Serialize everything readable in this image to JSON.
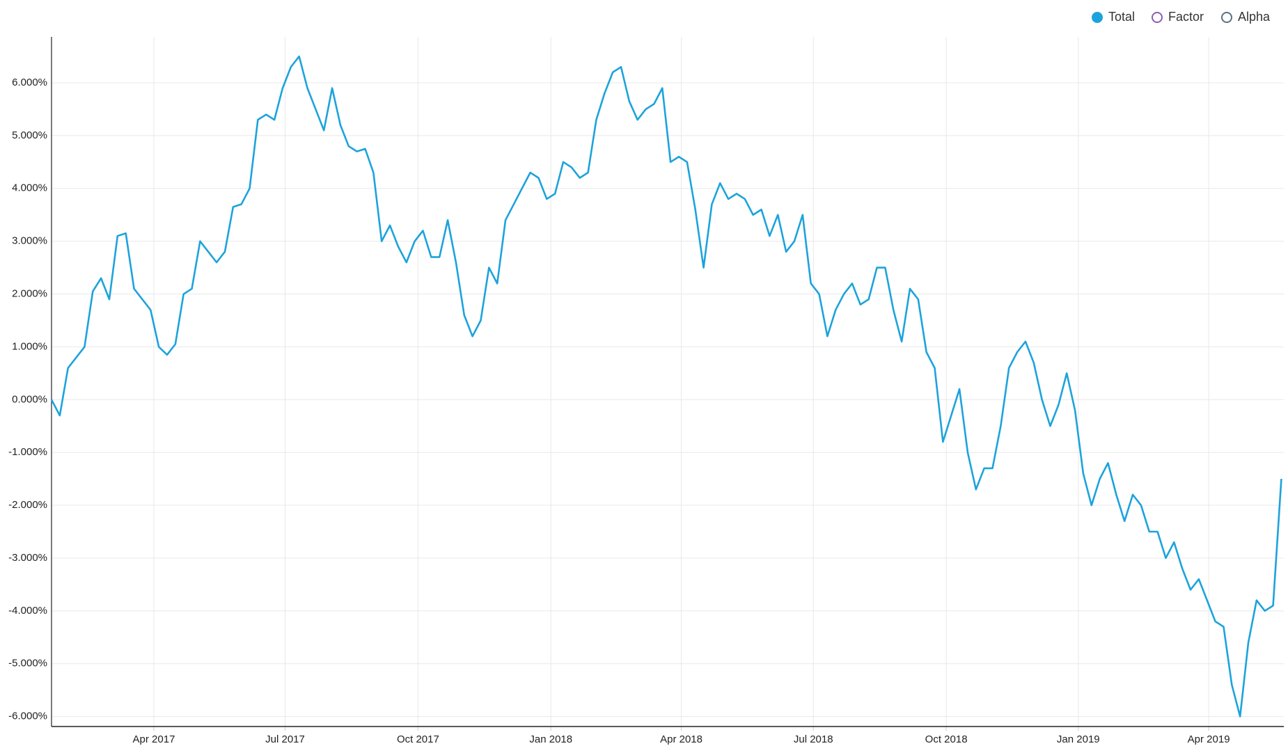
{
  "chart_data": {
    "type": "line",
    "series": [
      {
        "name": "Total",
        "color": "#1ca3dc",
        "values": [
          0.0,
          -0.3,
          0.6,
          0.8,
          1.0,
          2.05,
          2.3,
          1.9,
          3.1,
          3.15,
          2.1,
          1.9,
          1.7,
          1.0,
          0.85,
          1.05,
          2.0,
          2.1,
          3.0,
          2.8,
          2.6,
          2.8,
          3.65,
          3.7,
          4.0,
          5.3,
          5.4,
          5.3,
          5.9,
          6.3,
          6.5,
          5.9,
          5.5,
          5.1,
          5.9,
          5.2,
          4.8,
          4.7,
          4.75,
          4.3,
          3.0,
          3.3,
          2.9,
          2.6,
          3.0,
          3.2,
          2.7,
          2.7,
          3.4,
          2.6,
          1.6,
          1.2,
          1.5,
          2.5,
          2.2,
          3.4,
          3.7,
          4.0,
          4.3,
          4.2,
          3.8,
          3.9,
          4.5,
          4.4,
          4.2,
          4.3,
          5.3,
          5.8,
          6.2,
          6.3,
          5.65,
          5.3,
          5.5,
          5.6,
          5.9,
          4.5,
          4.6,
          4.5,
          3.6,
          2.5,
          3.7,
          4.1,
          3.8,
          3.9,
          3.8,
          3.5,
          3.6,
          3.1,
          3.5,
          2.8,
          3.0,
          3.5,
          2.2,
          2.0,
          1.2,
          1.7,
          2.0,
          2.2,
          1.8,
          1.9,
          2.5,
          2.5,
          1.7,
          1.1,
          2.1,
          1.9,
          0.9,
          0.6,
          -0.8,
          -0.3,
          0.2,
          -1.0,
          -1.7,
          -1.3,
          -1.3,
          -0.5,
          0.6,
          0.9,
          1.1,
          0.7,
          0.0,
          -0.5,
          -0.1,
          0.5,
          -0.2,
          -1.4,
          -2.0,
          -1.5,
          -1.2,
          -1.8,
          -2.3,
          -1.8,
          -2.0,
          -2.5,
          -2.5,
          -3.0,
          -2.7,
          -3.2,
          -3.6,
          -3.4,
          -3.8,
          -4.2,
          -4.3,
          -5.4,
          -6.0,
          -4.6,
          -3.8,
          -4.0,
          -3.9,
          -1.5
        ]
      }
    ],
    "xlim": [
      0,
      149.3
    ],
    "xticks": [
      {
        "value": 12.4,
        "label": "Apr 2017"
      },
      {
        "value": 28.3,
        "label": "Jul 2017"
      },
      {
        "value": 44.4,
        "label": "Oct 2017"
      },
      {
        "value": 60.5,
        "label": "Jan 2018"
      },
      {
        "value": 76.3,
        "label": "Apr 2018"
      },
      {
        "value": 92.3,
        "label": "Jul 2018"
      },
      {
        "value": 108.4,
        "label": "Oct 2018"
      },
      {
        "value": 124.4,
        "label": "Jan 2019"
      },
      {
        "value": 140.2,
        "label": "Apr 2019"
      }
    ],
    "ylim": [
      -6.19,
      6.87
    ],
    "yticks": [
      {
        "value": 6,
        "label": "6.000%"
      },
      {
        "value": 5,
        "label": "5.000%"
      },
      {
        "value": 4,
        "label": "4.000%"
      },
      {
        "value": 3,
        "label": "3.000%"
      },
      {
        "value": 2,
        "label": "2.000%"
      },
      {
        "value": 1,
        "label": "1.000%"
      },
      {
        "value": 0,
        "label": "0.000%"
      },
      {
        "value": -1,
        "label": "-1.000%"
      },
      {
        "value": -2,
        "label": "-2.000%"
      },
      {
        "value": -3,
        "label": "-3.000%"
      },
      {
        "value": -4,
        "label": "-4.000%"
      },
      {
        "value": -5,
        "label": "-5.000%"
      },
      {
        "value": -6,
        "label": "-6.000%"
      }
    ],
    "grid": true,
    "legend": {
      "position": "top-right",
      "items": [
        {
          "name": "Total",
          "color": "#1ca3dc",
          "active": true
        },
        {
          "name": "Factor",
          "color": "#8e5bb5",
          "active": false
        },
        {
          "name": "Alpha",
          "color": "#5b6f80",
          "active": false
        }
      ]
    }
  }
}
